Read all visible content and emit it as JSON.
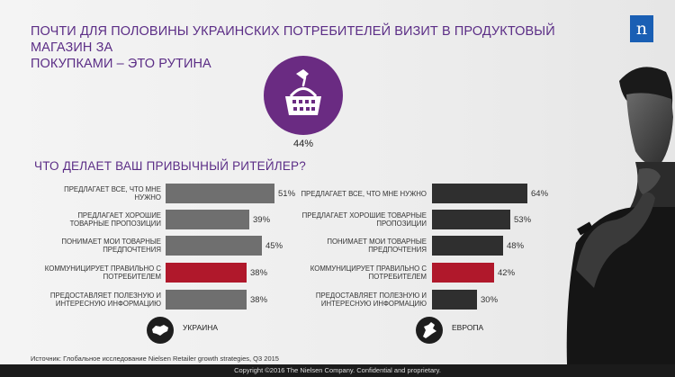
{
  "header": {
    "title_line1": "ПОЧТИ ДЛЯ ПОЛОВИНЫ УКРАИНСКИХ ПОТРЕБИТЕЛЕЙ ВИЗИТ В ПРОДУКТОВЫЙ МАГАЗИН ЗА",
    "title_line2": "ПОКУПКАМИ – ЭТО РУТИНА",
    "logo_text": "n"
  },
  "highlight": {
    "icon": "basket-icon",
    "percent": "44%"
  },
  "question": "ЧТО ДЕЛАЕТ ВАШ ПРИВЫЧНЫЙ РИТЕЙЛЕР?",
  "colors": {
    "accent_purple": "#5b2d86",
    "ukraine_bar": "#6f6f6f",
    "europe_bar": "#2f2f2f",
    "highlight_bar": "#b0182b"
  },
  "chart_data": [
    {
      "type": "bar",
      "orientation": "horizontal",
      "series_label": "УКРАИНА",
      "categories": [
        [
          "ПРЕДЛАГАЕТ ВСЕ, ЧТО МНЕ",
          "НУЖНО"
        ],
        [
          "ПРЕДЛАГАЕТ ХОРОШИЕ",
          "ТОВАРНЫЕ ПРОПОЗИЦИИ"
        ],
        [
          "ПОНИМАЕТ МОИ ТОВАРНЫЕ",
          "ПРЕДПОЧТЕНИЯ"
        ],
        [
          "КОММУНИЦИРУЕТ ПРАВИЛЬНО С",
          "ПОТРЕБИТЕЛЕМ"
        ],
        [
          "ПРЕДОСТАВЛЯЕТ ПОЛЕЗНУЮ И",
          "ИНТЕРЕСНУЮ ИНФОРМАЦИЮ"
        ]
      ],
      "values": [
        51,
        39,
        45,
        38,
        38
      ],
      "labels": [
        "51%",
        "39%",
        "45%",
        "38%",
        "38%"
      ],
      "highlight_index": 3
    },
    {
      "type": "bar",
      "orientation": "horizontal",
      "series_label": "ЕВРОПА",
      "categories": [
        [
          "ПРЕДЛАГАЕТ ВСЕ, ЧТО МНЕ НУЖНО"
        ],
        [
          "ПРЕДЛАГАЕТ ХОРОШИЕ ТОВАРНЫЕ",
          "ПРОПОЗИЦИИ"
        ],
        [
          "ПОНИМАЕТ МОИ ТОВАРНЫЕ",
          "ПРЕДПОЧТЕНИЯ"
        ],
        [
          "КОММУНИЦИРУЕТ ПРАВИЛЬНО С",
          "ПОТРЕБИТЕЛЕМ"
        ],
        [
          "ПРЕДОСТАВЛЯЕТ ПОЛЕЗНУЮ И",
          "ИНТЕРЕСНУЮ ИНФОРМАЦИЮ"
        ]
      ],
      "values": [
        64,
        53,
        48,
        42,
        30
      ],
      "labels": [
        "64%",
        "53%",
        "48%",
        "42%",
        "30%"
      ],
      "highlight_index": 3
    }
  ],
  "regions": {
    "ukraine": {
      "name": "УКРАИНА",
      "icon": "ukraine-map-icon"
    },
    "europe": {
      "name": "ЕВРОПА",
      "icon": "europe-map-icon"
    }
  },
  "footer": {
    "source": "Источник: Глобальное исследование Nielsen Retailer growth strategies, Q3 2015",
    "copyright": "Copyright ©2016 The Nielsen Company. Confidential and proprietary."
  },
  "photo": {
    "icon": "thinking-man-photo"
  }
}
